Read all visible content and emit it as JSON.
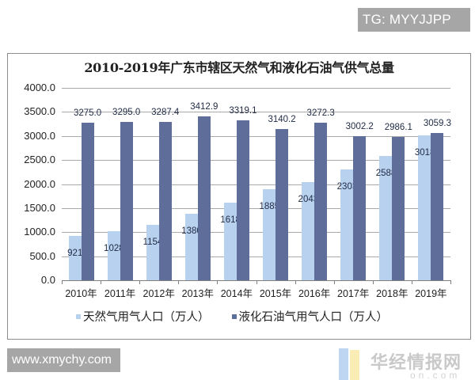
{
  "watermarks": {
    "top_right": "TG: MYYJJPP",
    "bottom_left": "www.xmychy.com",
    "logo_text": "华经情报网",
    "logo_sub": "on.com"
  },
  "chart_data": {
    "type": "bar",
    "title": "2010-2019年广东市辖区天然气和液化石油气供气总量",
    "xlabel": "",
    "ylabel": "",
    "ylim": [
      0,
      4000
    ],
    "yticks": [
      "0.0",
      "500.0",
      "1000.0",
      "1500.0",
      "2000.0",
      "2500.0",
      "3000.0",
      "3500.0",
      "4000.0"
    ],
    "grid": true,
    "legend_position": "bottom",
    "categories": [
      "2010年",
      "2011年",
      "2012年",
      "2013年",
      "2014年",
      "2015年",
      "2016年",
      "2017年",
      "2018年",
      "2019年"
    ],
    "series": [
      {
        "name": "天然气用气人口（万人）",
        "color": "#b8d1ee",
        "values": [
          921.7,
          1028.1,
          1154.7,
          1380.3,
          1618.7,
          1885.4,
          2043.1,
          2303.5,
          2588.8,
          3018.6
        ],
        "labels": [
          "921.7",
          "1028.1",
          "1154.7",
          "1380.3",
          "1618.7",
          "1885.4",
          "2043.1",
          "2303.5",
          "2588.8",
          "3018.6"
        ]
      },
      {
        "name": "液化石油气用气人口（万人）",
        "color": "#5f6d9b",
        "values": [
          3275.0,
          3295.0,
          3287.4,
          3412.9,
          3319.1,
          3140.2,
          3272.3,
          3002.2,
          2986.1,
          3059.3
        ],
        "labels": [
          "3275.0",
          "3295.0",
          "3287.4",
          "3412.9",
          "3319.1",
          "3140.2",
          "3272.3",
          "3002.2",
          "2986.1",
          "3059.3"
        ]
      }
    ]
  }
}
